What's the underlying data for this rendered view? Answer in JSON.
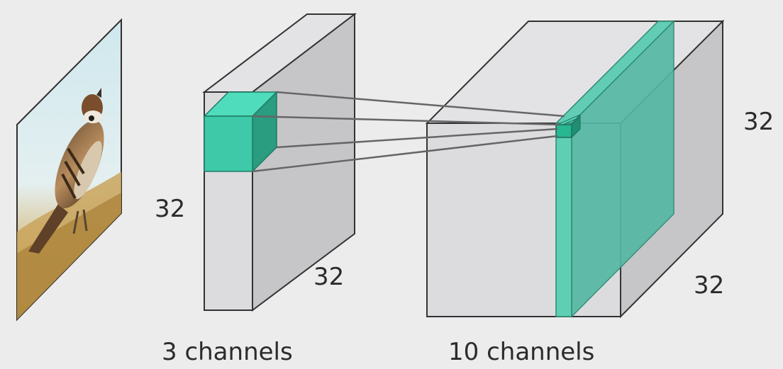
{
  "input_image": {
    "subject": "sparrow-photo"
  },
  "input_volume": {
    "height_label": "32",
    "width_label": "32",
    "channels_label": "3 channels"
  },
  "output_volume": {
    "height_label": "32",
    "width_label": "32",
    "channels_label": "10 channels"
  },
  "colors": {
    "background": "#ececec",
    "face_front": "#dcdcde",
    "face_side": "#c6c6c8",
    "face_top": "#e3e3e5",
    "edge": "#333333",
    "kernel_front": "#3ecaa9",
    "kernel_side": "#2a9c80",
    "kernel_top": "#4fdcbc",
    "highlight_slice": "#55b8a3"
  }
}
